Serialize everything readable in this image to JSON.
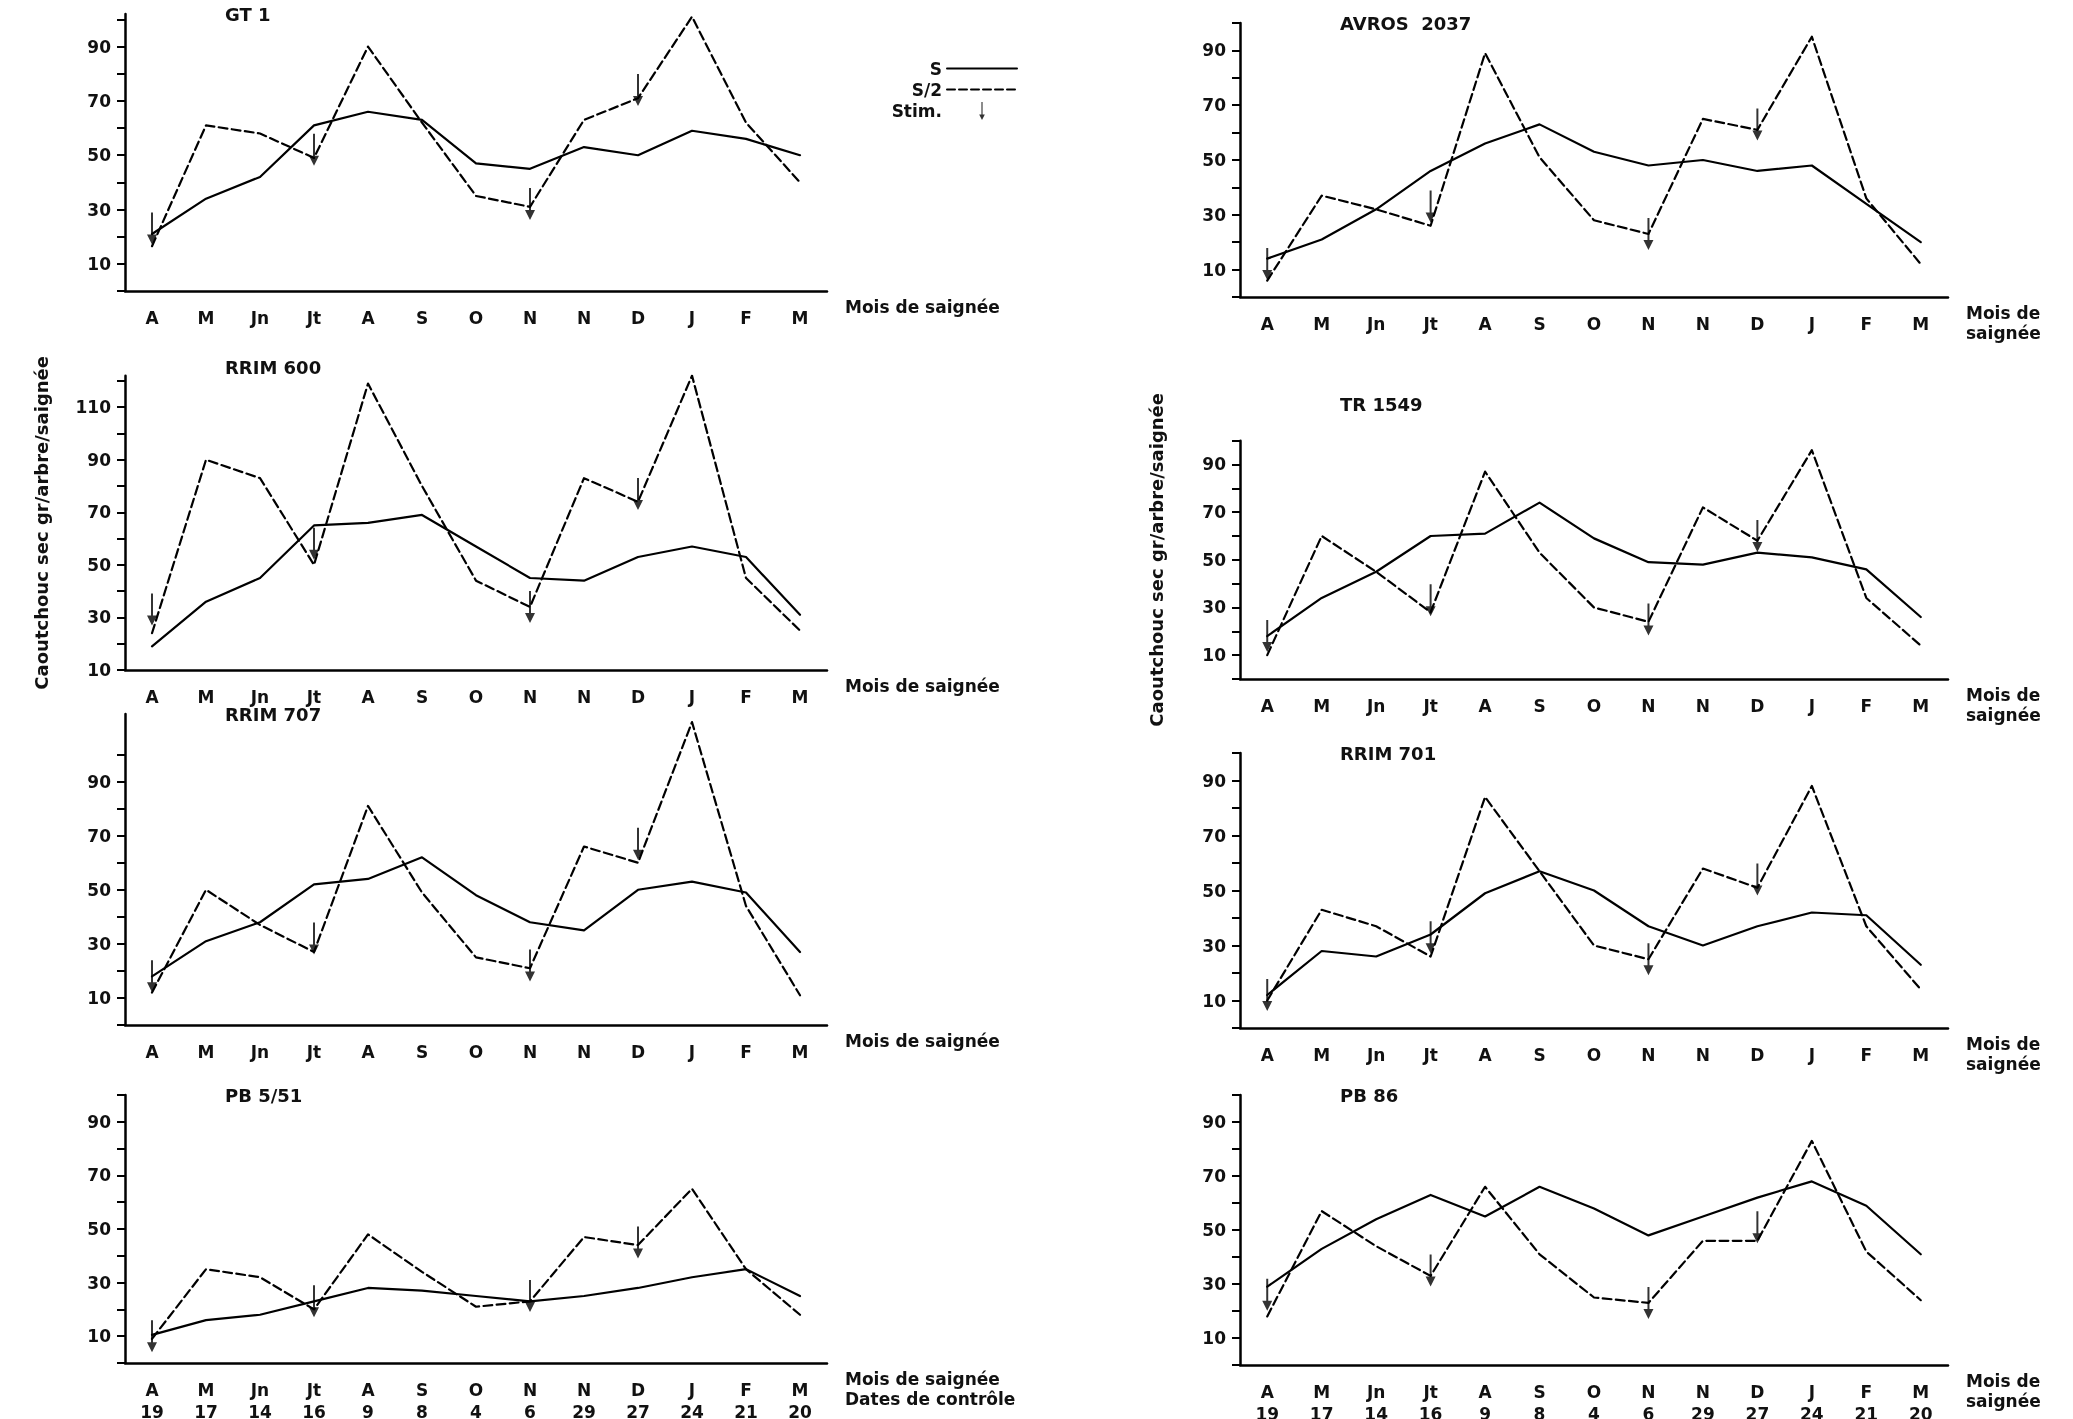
{
  "chart_data": [
    {
      "type": "line",
      "title": "GT 1",
      "categories": [
        "A",
        "M",
        "Jn",
        "Jt",
        "A",
        "S",
        "O",
        "N",
        "N",
        "D",
        "J",
        "F",
        "M"
      ],
      "xlabel": "Mois de saignée",
      "ylim": [
        0,
        102
      ],
      "yticks": [
        {
          "value": 0,
          "label": null
        },
        10,
        {
          "value": 20,
          "label": null
        },
        30,
        {
          "value": 40,
          "label": null
        },
        50,
        {
          "value": 60,
          "label": null
        },
        70,
        {
          "value": 80,
          "label": null
        },
        90,
        {
          "value": 100,
          "label": null
        }
      ],
      "grid": false,
      "marker": "none",
      "legend": "top right",
      "series": [
        {
          "name": "S",
          "color": "#000000",
          "line_style": "solid",
          "values": [
            21,
            34,
            42,
            61,
            66,
            63,
            47,
            45,
            53,
            50,
            59,
            56,
            50
          ]
        },
        {
          "name": "S/2",
          "color": "#000000",
          "line_style": "dashed",
          "values": [
            16.5,
            61,
            58,
            49,
            90,
            62,
            35,
            31,
            63,
            71,
            101,
            62,
            40
          ]
        },
        {
          "name": "Stim.",
          "type": "scatter",
          "color": "#000000",
          "values": [
            23,
            null,
            null,
            52,
            null,
            null,
            null,
            32,
            null,
            74,
            null,
            null,
            null
          ]
        }
      ]
    },
    {
      "type": "line",
      "title": "RRIM 600",
      "categories": [
        "A",
        "M",
        "Jn",
        "Jt",
        "A",
        "S",
        "O",
        "N",
        "N",
        "D",
        "J",
        "F",
        "M"
      ],
      "xlabel": "Mois de saignée",
      "ylabel": "Caoutchouc sec gr/arbre/saignée",
      "ylim": [
        10,
        122
      ],
      "yticks": [
        10,
        {
          "value": 20,
          "label": null
        },
        30,
        {
          "value": 40,
          "label": null
        },
        50,
        {
          "value": 60,
          "label": null
        },
        70,
        {
          "value": 80,
          "label": null
        },
        90,
        {
          "value": 100,
          "label": null
        },
        110,
        {
          "value": 120,
          "label": null
        }
      ],
      "grid": false,
      "marker": "none",
      "series": [
        {
          "color": "#000000",
          "line_style": "solid",
          "values": [
            19,
            36,
            45,
            65,
            66,
            69,
            57,
            45,
            44,
            53,
            57,
            53,
            31
          ]
        },
        {
          "color": "#000000",
          "line_style": "dashed",
          "values": [
            24,
            90,
            83,
            50,
            119,
            80,
            44,
            34,
            83,
            74,
            122,
            45,
            25
          ]
        },
        {
          "type": "scatter",
          "color": "#000000",
          "values": [
            33,
            null,
            null,
            58,
            null,
            null,
            null,
            34,
            null,
            77,
            null,
            null,
            null
          ]
        }
      ]
    },
    {
      "type": "line",
      "title": "RRIM 707",
      "categories": [
        "A",
        "M",
        "Jn",
        "Jt",
        "A",
        "S",
        "O",
        "N",
        "N",
        "D",
        "J",
        "F",
        "M"
      ],
      "xlabel": "Mois de saignée",
      "ylim": [
        0,
        115
      ],
      "yticks": [
        {
          "value": 0,
          "label": null
        },
        10,
        {
          "value": 20,
          "label": null
        },
        30,
        {
          "value": 40,
          "label": null
        },
        50,
        {
          "value": 60,
          "label": null
        },
        70,
        {
          "value": 80,
          "label": null
        },
        90,
        {
          "value": 100,
          "label": null
        }
      ],
      "grid": false,
      "marker": "none",
      "series": [
        {
          "color": "#000000",
          "line_style": "solid",
          "values": [
            18,
            31,
            38,
            52,
            54,
            62,
            48,
            38,
            35,
            50,
            53,
            49,
            27
          ]
        },
        {
          "color": "#000000",
          "line_style": "dashed",
          "values": [
            12,
            50,
            37,
            27,
            81,
            49,
            25,
            21,
            66,
            60,
            112,
            44,
            11
          ]
        },
        {
          "type": "scatter",
          "color": "#000000",
          "values": [
            18,
            null,
            null,
            32,
            null,
            null,
            null,
            22,
            null,
            67,
            null,
            null,
            null
          ]
        }
      ]
    },
    {
      "type": "line",
      "title": "PB 5/51",
      "categories": [
        "A\n19",
        "M\n17",
        "Jn\n14",
        "Jt\n16",
        "A\n9",
        "S\n8",
        "O\n4",
        "N\n6",
        "N\n29",
        "D\n27",
        "J\n24",
        "F\n21",
        "M\n20"
      ],
      "xlabel": "Mois de saignée\nDates de contrôle",
      "ylim": [
        0,
        100
      ],
      "yticks": [
        {
          "value": 0,
          "label": null
        },
        10,
        {
          "value": 20,
          "label": null
        },
        30,
        {
          "value": 40,
          "label": null
        },
        50,
        {
          "value": 60,
          "label": null
        },
        70,
        {
          "value": 80,
          "label": null
        },
        90,
        {
          "value": 100,
          "label": null
        }
      ],
      "grid": false,
      "marker": "none",
      "series": [
        {
          "color": "#000000",
          "line_style": "solid",
          "values": [
            10.5,
            16,
            18,
            23,
            28,
            27,
            25,
            23,
            25,
            28,
            32,
            35,
            25
          ]
        },
        {
          "color": "#000000",
          "line_style": "dashed",
          "values": [
            9,
            35,
            32,
            20,
            48,
            34,
            21,
            23,
            47,
            44,
            65,
            35,
            18
          ]
        },
        {
          "type": "scatter",
          "color": "#000000",
          "values": [
            10,
            null,
            null,
            23,
            null,
            null,
            null,
            25,
            null,
            45,
            null,
            null,
            null
          ]
        }
      ]
    },
    {
      "type": "line",
      "title": "AVROS  2037",
      "categories": [
        "A",
        "M",
        "Jn",
        "Jt",
        "A",
        "S",
        "O",
        "N",
        "N",
        "D",
        "J",
        "F",
        "M"
      ],
      "xlabel": "Mois de\nsaignée",
      "ylim": [
        0,
        100
      ],
      "yticks": [
        {
          "value": 0,
          "label": null
        },
        10,
        {
          "value": 20,
          "label": null
        },
        30,
        {
          "value": 40,
          "label": null
        },
        50,
        {
          "value": 60,
          "label": null
        },
        70,
        {
          "value": 80,
          "label": null
        },
        90,
        {
          "value": 100,
          "label": null
        }
      ],
      "grid": false,
      "marker": "none",
      "series": [
        {
          "color": "#000000",
          "line_style": "solid",
          "values": [
            14,
            21,
            32,
            46,
            56,
            63,
            53,
            48,
            50,
            46,
            48,
            34,
            20
          ]
        },
        {
          "color": "#000000",
          "line_style": "dashed",
          "values": [
            6,
            37,
            32,
            26,
            89,
            51,
            28,
            23,
            65,
            61,
            95,
            36,
            12
          ]
        },
        {
          "type": "scatter",
          "color": "#000000",
          "values": [
            12,
            null,
            null,
            33,
            null,
            null,
            null,
            23,
            null,
            63,
            null,
            null,
            null
          ]
        }
      ]
    },
    {
      "type": "line",
      "title": "TR 1549",
      "categories": [
        "A",
        "M",
        "Jn",
        "Jt",
        "A",
        "S",
        "O",
        "N",
        "N",
        "D",
        "J",
        "F",
        "M"
      ],
      "xlabel": "Mois de\nsaignée",
      "ylabel": "Caoutchouc sec gr/arbre/saignée",
      "ylim": [
        0,
        100
      ],
      "yticks": [
        {
          "value": 0,
          "label": null
        },
        10,
        {
          "value": 20,
          "label": null
        },
        30,
        {
          "value": 40,
          "label": null
        },
        50,
        {
          "value": 60,
          "label": null
        },
        70,
        {
          "value": 80,
          "label": null
        },
        90,
        {
          "value": 100,
          "label": null
        }
      ],
      "grid": false,
      "marker": "none",
      "series": [
        {
          "color": "#000000",
          "line_style": "solid",
          "values": [
            18,
            34,
            45,
            60,
            61,
            74,
            59,
            49,
            48,
            53,
            51,
            46,
            26
          ]
        },
        {
          "color": "#000000",
          "line_style": "dashed",
          "values": [
            10,
            60,
            45,
            28,
            87,
            53,
            30,
            24,
            72,
            58,
            96,
            34,
            14
          ]
        },
        {
          "type": "scatter",
          "color": "#000000",
          "values": [
            18,
            null,
            null,
            33,
            null,
            null,
            null,
            25,
            null,
            60,
            null,
            null,
            null
          ]
        }
      ]
    },
    {
      "type": "line",
      "title": "RRIM 701",
      "categories": [
        "A",
        "M",
        "Jn",
        "Jt",
        "A",
        "S",
        "O",
        "N",
        "N",
        "D",
        "J",
        "F",
        "M"
      ],
      "xlabel": "Mois de\nsaignée",
      "ylim": [
        0,
        100
      ],
      "yticks": [
        {
          "value": 0,
          "label": null
        },
        10,
        {
          "value": 20,
          "label": null
        },
        30,
        {
          "value": 40,
          "label": null
        },
        50,
        {
          "value": 60,
          "label": null
        },
        70,
        {
          "value": 80,
          "label": null
        },
        90,
        {
          "value": 100,
          "label": null
        }
      ],
      "grid": false,
      "marker": "none",
      "series": [
        {
          "color": "#000000",
          "line_style": "solid",
          "values": [
            12,
            28,
            26,
            34,
            49,
            57,
            50,
            37,
            30,
            37,
            42,
            41,
            23
          ]
        },
        {
          "color": "#000000",
          "line_style": "dashed",
          "values": [
            10,
            43,
            37,
            26,
            84,
            57,
            30,
            25,
            58,
            51,
            88,
            37,
            14
          ]
        },
        {
          "type": "scatter",
          "color": "#000000",
          "values": [
            12,
            null,
            null,
            33,
            null,
            null,
            null,
            25,
            null,
            54,
            null,
            null,
            null
          ]
        }
      ]
    },
    {
      "type": "line",
      "title": "PB 86",
      "categories": [
        "A\n19",
        "M\n17",
        "Jn\n14",
        "Jt\n16",
        "A\n9",
        "S\n8",
        "O\n4",
        "N\n6",
        "N\n29",
        "D\n27",
        "J\n24",
        "F\n21",
        "M\n20"
      ],
      "xlabel": "Mois de\nsaignée",
      "ylim": [
        0,
        100
      ],
      "yticks": [
        {
          "value": 0,
          "label": null
        },
        10,
        {
          "value": 20,
          "label": null
        },
        30,
        {
          "value": 40,
          "label": null
        },
        50,
        {
          "value": 60,
          "label": null
        },
        70,
        {
          "value": 80,
          "label": null
        },
        90,
        {
          "value": 100,
          "label": null
        }
      ],
      "grid": false,
      "marker": "none",
      "series": [
        {
          "color": "#000000",
          "line_style": "solid",
          "values": [
            29,
            43,
            54,
            63,
            55,
            66,
            58,
            48,
            55,
            62,
            68,
            59,
            41
          ]
        },
        {
          "color": "#000000",
          "line_style": "dashed",
          "values": [
            18,
            57,
            44,
            33,
            66,
            41,
            25,
            23,
            46,
            46,
            83,
            42,
            24
          ]
        },
        {
          "type": "scatter",
          "color": "#000000",
          "values": [
            26,
            null,
            null,
            35,
            null,
            null,
            null,
            23,
            null,
            51,
            null,
            null,
            null
          ]
        }
      ]
    }
  ]
}
